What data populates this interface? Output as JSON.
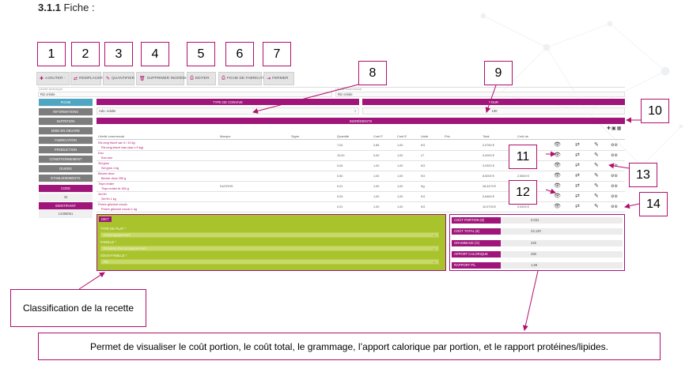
{
  "heading": {
    "num": "3.1.1",
    "title": "Fiche :"
  },
  "callouts": [
    "1",
    "2",
    "3",
    "4",
    "5",
    "6",
    "7",
    "8",
    "9",
    "10",
    "11",
    "12",
    "13",
    "14"
  ],
  "toolbar": [
    {
      "icon": "plus-icon",
      "glyph": "✚",
      "label": "AJOUTER -"
    },
    {
      "icon": "swap-icon",
      "glyph": "⇄",
      "label": "REMPLACER -"
    },
    {
      "icon": "edit-icon",
      "glyph": "✎",
      "label": "QUANTIFIER"
    },
    {
      "icon": "trash-icon",
      "glyph": "🗑",
      "label": "SUPPRIMER INGRÉDIENTS"
    },
    {
      "icon": "printer-icon",
      "glyph": "⎙",
      "label": "EDITER"
    },
    {
      "icon": "printer-icon",
      "glyph": "⎙",
      "label": "FICHE DE FABRICATION"
    },
    {
      "icon": "close-icon",
      "glyph": "⇥",
      "label": "FERMER"
    }
  ],
  "form": {
    "libelle_technique_label": "Libellé technique",
    "libelle_technique_value": "Riz créole",
    "libelle_commercial_label": "Libellé commercial",
    "libelle_commercial_value": "Riz créole"
  },
  "sidebar": [
    {
      "label": "FICHE",
      "state": "active"
    },
    {
      "label": "INFORMATIONS",
      "state": "normal"
    },
    {
      "label": "NUTRITION",
      "state": "normal"
    },
    {
      "label": "MISE EN OEUVRE",
      "state": "normal"
    },
    {
      "label": "FABRICATION",
      "state": "normal"
    },
    {
      "label": "PRODUCTION",
      "state": "normal"
    },
    {
      "label": "CONDITIONNEMENT",
      "state": "normal"
    },
    {
      "label": "DIVERS",
      "state": "normal"
    },
    {
      "label": "ETABLISSEMENTS",
      "state": "normal"
    },
    {
      "label": "CODE",
      "state": "mag"
    },
    {
      "label": "33",
      "state": "light"
    },
    {
      "label": "IDENTIFIANT",
      "state": "mag"
    },
    {
      "label": "14368051",
      "state": "light"
    }
  ],
  "convive": {
    "header": "TYPE DE CONVIVE",
    "value": "Ado. Adulte"
  },
  "pour": {
    "header": "POUR",
    "value": "100"
  },
  "ingredients_header": "INGRÉDIENTS",
  "table": {
    "columns": [
      "Libellé commercial",
      "Marque",
      "Signe",
      "Quantité",
      "Coef F",
      "Coef E",
      "Unité",
      "Prix",
      "Total",
      "Coût de"
    ],
    "rows": [
      {
        "name": "Riz long étuvé sac 5 / 10 kg",
        "sub": "Riz long étuvé vrac (sac x 5 kg)",
        "brand": "",
        "qty": "7,00",
        "cf": "2,85",
        "ce": "1,00",
        "unit": "KG",
        "price": "",
        "total": "2,0760 €",
        "cost": ""
      },
      {
        "name": "Eau",
        "sub": "Eau ann",
        "brand": "",
        "qty": "10,00",
        "cf": "0,00",
        "ce": "1,00",
        "unit": "LT",
        "price": "",
        "total": "0,0000 €",
        "cost": ""
      },
      {
        "name": "Sel gros",
        "sub": "Sel gros 1 kg",
        "brand": "",
        "qty": "0,06",
        "cf": "1,00",
        "ce": "1,00",
        "unit": "KG",
        "price": "",
        "total": "0,0320 €",
        "cost": ""
      },
      {
        "name": "Beurre doux",
        "sub": "Beurre doux 250 g",
        "brand": "",
        "qty": "0,50",
        "cf": "1,00",
        "ce": "1,00",
        "unit": "KG",
        "price": "",
        "total": "8,6000 €",
        "cost": "2,5800 €"
      },
      {
        "name": "Thym entier",
        "sub": "Thym entier bt 165 g",
        "brand": "DUCROS",
        "qty": "0,01",
        "cf": "1,00",
        "ce": "1,00",
        "unit": "Kg",
        "price": "",
        "total": "28,4479 €",
        "cost": "0,2845 €"
      },
      {
        "name": "Sel fin",
        "sub": "Sel fin 1 kg",
        "brand": "",
        "qty": "0,03",
        "cf": "1,00",
        "ce": "1,00",
        "unit": "KG",
        "price": "",
        "total": "0,6460 €",
        "cost": "0,0194 €"
      },
      {
        "name": "Poivre gris/noir moulu",
        "sub": "Poivre gris/noir moulu 1 kg",
        "brand": "",
        "qty": "0,01",
        "cf": "1,00",
        "ce": "1,00",
        "unit": "KG",
        "price": "",
        "total": "10,9733 €",
        "cost": "0,0024 €"
      }
    ]
  },
  "diet": {
    "title": "DIET",
    "fields": [
      {
        "label": "TYPE DE PLAT *",
        "value": "Accompagnement"
      },
      {
        "label": "FAMILLE *",
        "value": "Féculent d'accompagnement"
      },
      {
        "label": "SOUS-FAMILLE *",
        "value": "Riz"
      }
    ]
  },
  "stats": [
    {
      "label": "COÛT PORTION (€)",
      "value": "0,031"
    },
    {
      "label": "COÛT TOTAL (€)",
      "value": "23,130"
    },
    {
      "label": "GRAMMAGE (G)",
      "value": "225"
    },
    {
      "label": "APPORT CALORIQUE",
      "value": "280"
    },
    {
      "label": "RAPPORT P/L",
      "value": "1,68"
    }
  ],
  "annotation_classification": "Classification de la recette",
  "annotation_stats": "Permet de visualiser le coût portion, le coût total, le grammage, l’apport calorique par portion, et le rapport protéines/lipides."
}
